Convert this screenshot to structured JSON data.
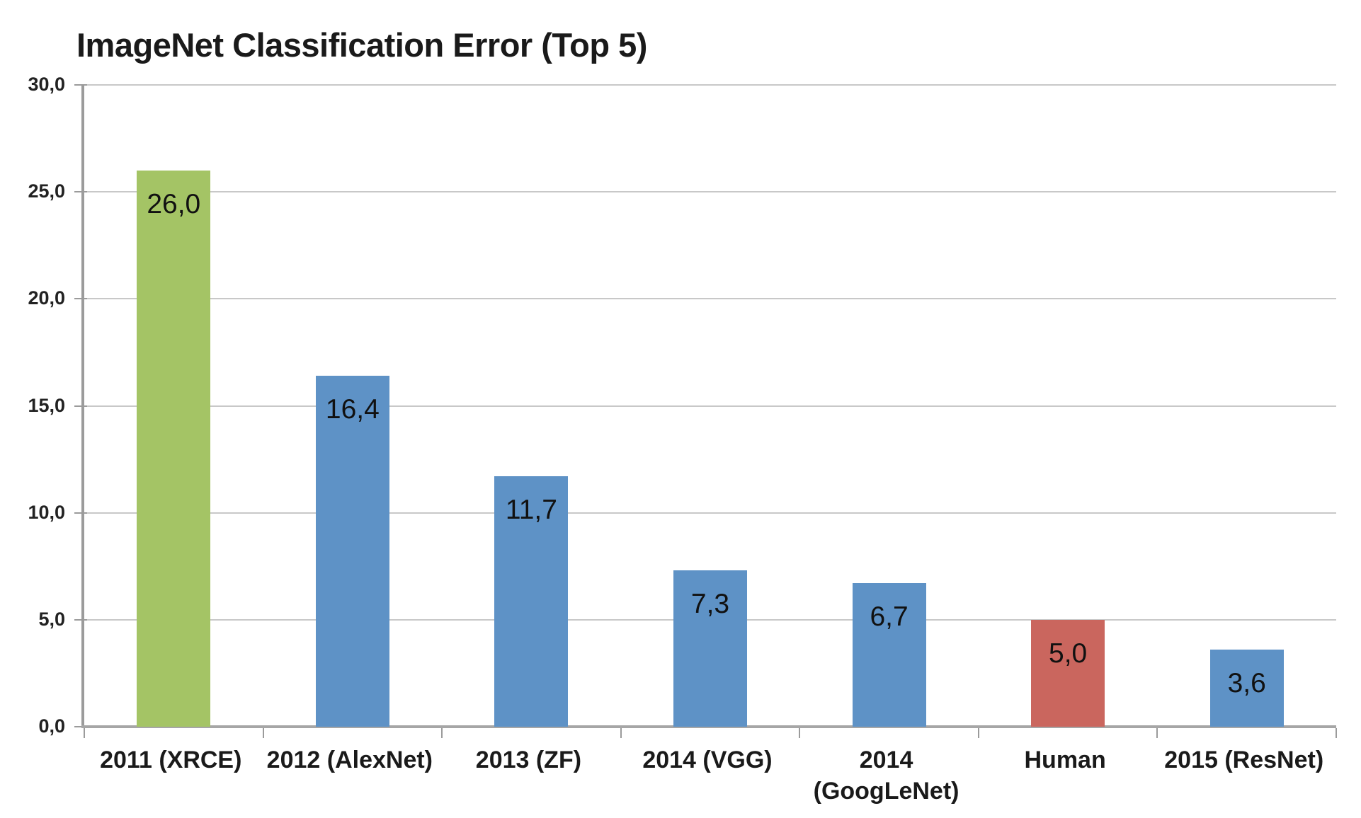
{
  "chart_data": {
    "type": "bar",
    "title": "ImageNet Classification Error (Top 5)",
    "categories": [
      "2011 (XRCE)",
      "2012 (AlexNet)",
      "2013 (ZF)",
      "2014 (VGG)",
      "2014 (GoogLeNet)",
      "Human",
      "2015 (ResNet)"
    ],
    "category_label_lines": [
      [
        "2011 (XRCE)"
      ],
      [
        "2012 (AlexNet)"
      ],
      [
        "2013 (ZF)"
      ],
      [
        "2014 (VGG)"
      ],
      [
        "2014",
        "(GoogLeNet)"
      ],
      [
        "Human"
      ],
      [
        "2015 (ResNet)"
      ]
    ],
    "values": [
      26.0,
      16.4,
      11.7,
      7.3,
      6.7,
      5.0,
      3.6
    ],
    "value_labels": [
      "26,0",
      "16,4",
      "11,7",
      "7,3",
      "6,7",
      "5,0",
      "3,6"
    ],
    "bar_colors": [
      "#a4c465",
      "#5e92c6",
      "#5e92c6",
      "#5e92c6",
      "#5e92c6",
      "#ca665e",
      "#5e92c6"
    ],
    "bar_texture": [
      "dots",
      "none",
      "none",
      "none",
      "none",
      "none",
      "none"
    ],
    "series_colors": {
      "default_blue": "#5e92c6",
      "highlight_green": "#a4c465",
      "highlight_red": "#ca665e"
    },
    "xlabel": "",
    "ylabel": "",
    "ylim": [
      0,
      30
    ],
    "ytick_step": 5,
    "ytick_labels": [
      "0,0",
      "5,0",
      "10,0",
      "15,0",
      "20,0",
      "25,0",
      "30,0"
    ],
    "decimal_separator": ",",
    "grid": "horizontal-only",
    "gridline_color": "#c8c8c8",
    "axis_color": "#9b9b9b",
    "legend": "none",
    "value_label_position": "inside-top",
    "background": "#ffffff"
  }
}
